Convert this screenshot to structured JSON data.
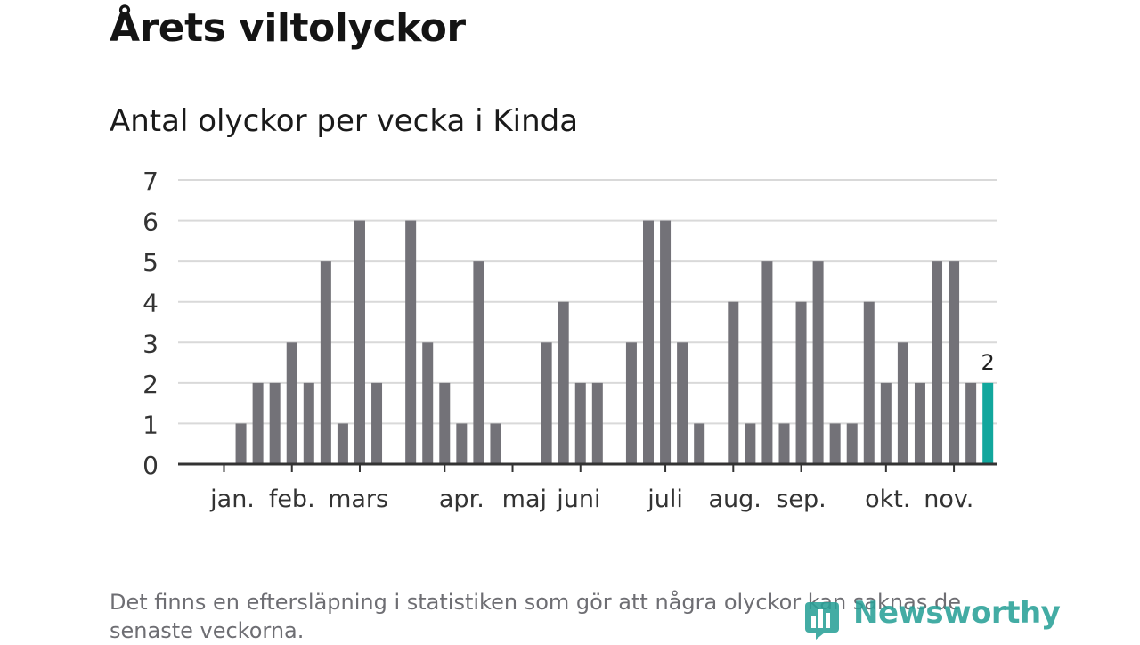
{
  "header": {
    "title": "Årets viltolyckor",
    "subtitle": "Antal olyckor per vecka i Kinda"
  },
  "footnote": "Det finns en eftersläpning i statistiken som gör att några olyckor kan saknas de senaste veckorna.",
  "brand": {
    "name": "Newsworthy",
    "color": "#2aa198"
  },
  "colors": {
    "bar": "#737278",
    "highlight": "#12a79d",
    "grid": "#d9d9d9",
    "axis": "#333333"
  },
  "chart_data": {
    "type": "bar",
    "title": "Antal olyckor per vecka i Kinda",
    "ylabel": "",
    "xlabel": "",
    "ylim": [
      0,
      7
    ],
    "yticks": [
      "0",
      "1",
      "2",
      "3",
      "4",
      "5",
      "6",
      "7"
    ],
    "weeks": [
      1,
      2,
      3,
      4,
      5,
      6,
      7,
      8,
      9,
      10,
      11,
      12,
      13,
      14,
      15,
      16,
      17,
      18,
      19,
      20,
      21,
      22,
      23,
      24,
      25,
      26,
      27,
      28,
      29,
      30,
      31,
      32,
      33,
      34,
      35,
      36,
      37,
      38,
      39,
      40,
      41,
      42,
      43,
      44,
      45,
      46
    ],
    "values": [
      0,
      1,
      2,
      2,
      3,
      2,
      5,
      1,
      6,
      2,
      0,
      6,
      3,
      2,
      1,
      5,
      1,
      0,
      0,
      3,
      4,
      2,
      2,
      0,
      3,
      6,
      6,
      3,
      1,
      0,
      4,
      1,
      5,
      1,
      4,
      5,
      1,
      1,
      4,
      2,
      3,
      2,
      5,
      5,
      2,
      2
    ],
    "highlight_index": 45,
    "highlight_label": "2",
    "month_labels": [
      {
        "label": "jan.",
        "week": 1
      },
      {
        "label": "feb.",
        "week": 5
      },
      {
        "label": "mars",
        "week": 9
      },
      {
        "label": "apr.",
        "week": 14
      },
      {
        "label": "maj",
        "week": 18
      },
      {
        "label": "juni",
        "week": 22
      },
      {
        "label": "juli",
        "week": 27
      },
      {
        "label": "aug.",
        "week": 31
      },
      {
        "label": "sep.",
        "week": 35
      },
      {
        "label": "okt.",
        "week": 40
      },
      {
        "label": "nov.",
        "week": 44
      }
    ],
    "month_label_weeks": [
      1.5,
      5.0,
      8.9,
      15.0,
      18.7,
      21.9,
      27.0,
      31.1,
      35.0,
      40.1,
      43.7
    ]
  }
}
